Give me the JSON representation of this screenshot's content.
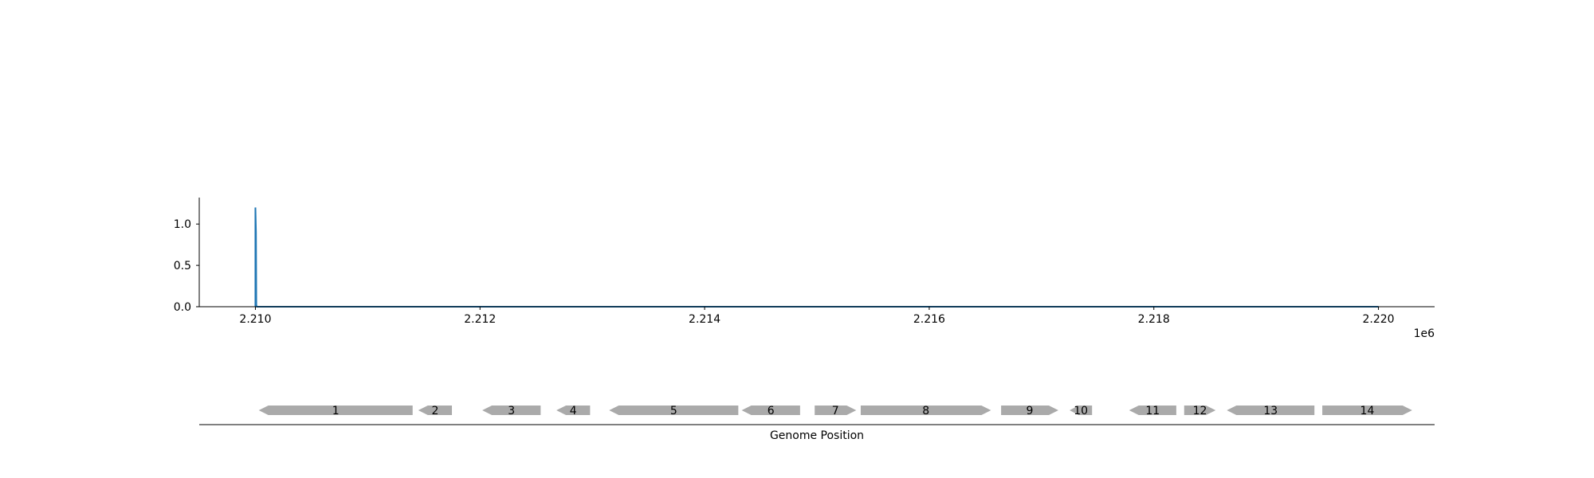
{
  "chart_data": [
    {
      "type": "line",
      "title": "",
      "xlabel": "",
      "ylabel": "",
      "x_offset_label": "1e6",
      "xlim": [
        2209500,
        2220500
      ],
      "ylim": [
        0,
        1.32
      ],
      "x_ticks": [
        2210000,
        2212000,
        2214000,
        2216000,
        2218000,
        2220000
      ],
      "x_tick_labels": [
        "2.210",
        "2.212",
        "2.214",
        "2.216",
        "2.218",
        "2.220"
      ],
      "y_ticks": [
        0.0,
        0.5,
        1.0
      ],
      "y_tick_labels": [
        "0.0",
        "0.5",
        "1.0"
      ],
      "grid": false,
      "series_color": "#1f77b4",
      "series": [
        {
          "x": [
            2210000,
            2210000,
            2210005,
            2210008,
            2210012,
            2220000
          ],
          "y": [
            0,
            1.2,
            0.9,
            0.02,
            0,
            0
          ]
        }
      ]
    },
    {
      "type": "gene_track",
      "xlabel": "Genome Position",
      "xlim": [
        2209500,
        2220500
      ],
      "gene_color": "#aaaaaa",
      "genes": [
        {
          "label": "1",
          "start": 2210030,
          "end": 2211400,
          "strand": "-"
        },
        {
          "label": "2",
          "start": 2211450,
          "end": 2211750,
          "strand": "-"
        },
        {
          "label": "3",
          "start": 2212020,
          "end": 2212540,
          "strand": "-"
        },
        {
          "label": "4",
          "start": 2212680,
          "end": 2212980,
          "strand": "-"
        },
        {
          "label": "5",
          "start": 2213150,
          "end": 2214300,
          "strand": "-"
        },
        {
          "label": "6",
          "start": 2214330,
          "end": 2214850,
          "strand": "-"
        },
        {
          "label": "7",
          "start": 2214980,
          "end": 2215350,
          "strand": "+"
        },
        {
          "label": "8",
          "start": 2215390,
          "end": 2216550,
          "strand": "+"
        },
        {
          "label": "9",
          "start": 2216640,
          "end": 2217150,
          "strand": "+"
        },
        {
          "label": "10",
          "start": 2217250,
          "end": 2217450,
          "strand": "-"
        },
        {
          "label": "11",
          "start": 2217780,
          "end": 2218200,
          "strand": "-"
        },
        {
          "label": "12",
          "start": 2218270,
          "end": 2218550,
          "strand": "+"
        },
        {
          "label": "13",
          "start": 2218650,
          "end": 2219430,
          "strand": "-"
        },
        {
          "label": "14",
          "start": 2219500,
          "end": 2220300,
          "strand": "+"
        }
      ]
    }
  ]
}
